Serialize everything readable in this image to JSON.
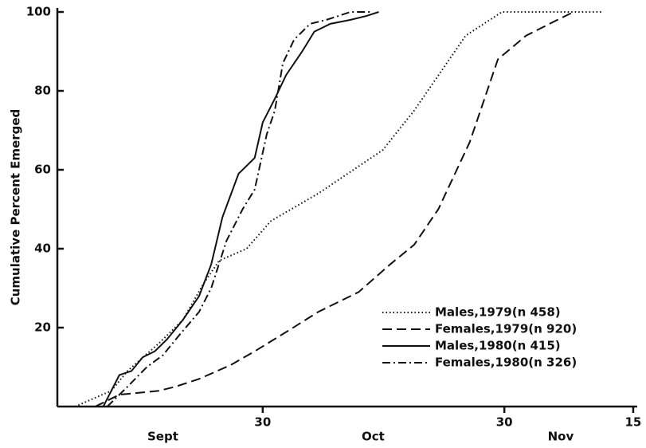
{
  "chart_data": {
    "type": "line",
    "y_label": "Cumulative Percent Emerged",
    "xlim": [
      4.5,
      76.5
    ],
    "ylim": [
      0,
      100
    ],
    "xticks": [
      30,
      {
        "value": 60,
        "label": "30"
      },
      {
        "value": 76,
        "label": "15"
      }
    ],
    "yticks": [
      20,
      40,
      60,
      80,
      100
    ],
    "month_labels": [
      {
        "text": "Sept",
        "x": 17.6
      },
      {
        "text": "Oct",
        "x": 43.7
      },
      {
        "text": "Nov",
        "x": 67
      }
    ],
    "legend": "lower right",
    "series": [
      {
        "name": "Males,1979(n 458)",
        "color": "#111",
        "dash": "dotted",
        "x": [
          6.7,
          11.2,
          13.2,
          17.1,
          20.1,
          22.6,
          24.6,
          28,
          31,
          36.9,
          44.9,
          48.8,
          55.2,
          59.7,
          65.6,
          72.1
        ],
        "values": [
          0,
          4,
          9,
          16,
          22,
          31,
          37,
          40,
          47,
          54,
          65,
          75,
          94,
          100,
          100,
          100
        ]
      },
      {
        "name": "Females,1979(n 920)",
        "color": "#111",
        "dash": "dashed",
        "x": [
          9.2,
          12.2,
          17.1,
          19.1,
          22.1,
          26,
          29,
          33,
          36.9,
          41.9,
          45.8,
          48.8,
          51.8,
          55.7,
          59.2,
          62.7,
          66.6,
          68.6
        ],
        "values": [
          0,
          3,
          4,
          5,
          7,
          10.5,
          14,
          19,
          24,
          29,
          36,
          41,
          50,
          67,
          88,
          94,
          98,
          100
        ]
      },
      {
        "name": "Males,1980(n 415)",
        "color": "#111",
        "dash": "solid",
        "x": [
          10.2,
          12.2,
          13.7,
          15.1,
          16.6,
          18.1,
          20.1,
          22.1,
          23.6,
          25,
          27,
          29,
          30,
          31.5,
          32.9,
          34.9,
          36.4,
          38.4,
          40.9,
          42.9,
          44.4
        ],
        "values": [
          0,
          8,
          9,
          12.5,
          14,
          17,
          22,
          28,
          36,
          48,
          59,
          63,
          72,
          78,
          84,
          90,
          95,
          97,
          98,
          99,
          100
        ]
      },
      {
        "name": "Females,1980(n 326)",
        "color": "#111",
        "dash": "dashdot",
        "x": [
          10.7,
          13.2,
          15.6,
          17.6,
          19.6,
          22.1,
          23.6,
          25.5,
          27.5,
          29,
          30.5,
          31.5,
          32.5,
          33.9,
          35.9,
          37.9,
          40.9,
          43.4
        ],
        "values": [
          0,
          5,
          10,
          13,
          18,
          24,
          30,
          42,
          50,
          55,
          69,
          75,
          87,
          93,
          97,
          98,
          100,
          100
        ]
      }
    ]
  }
}
